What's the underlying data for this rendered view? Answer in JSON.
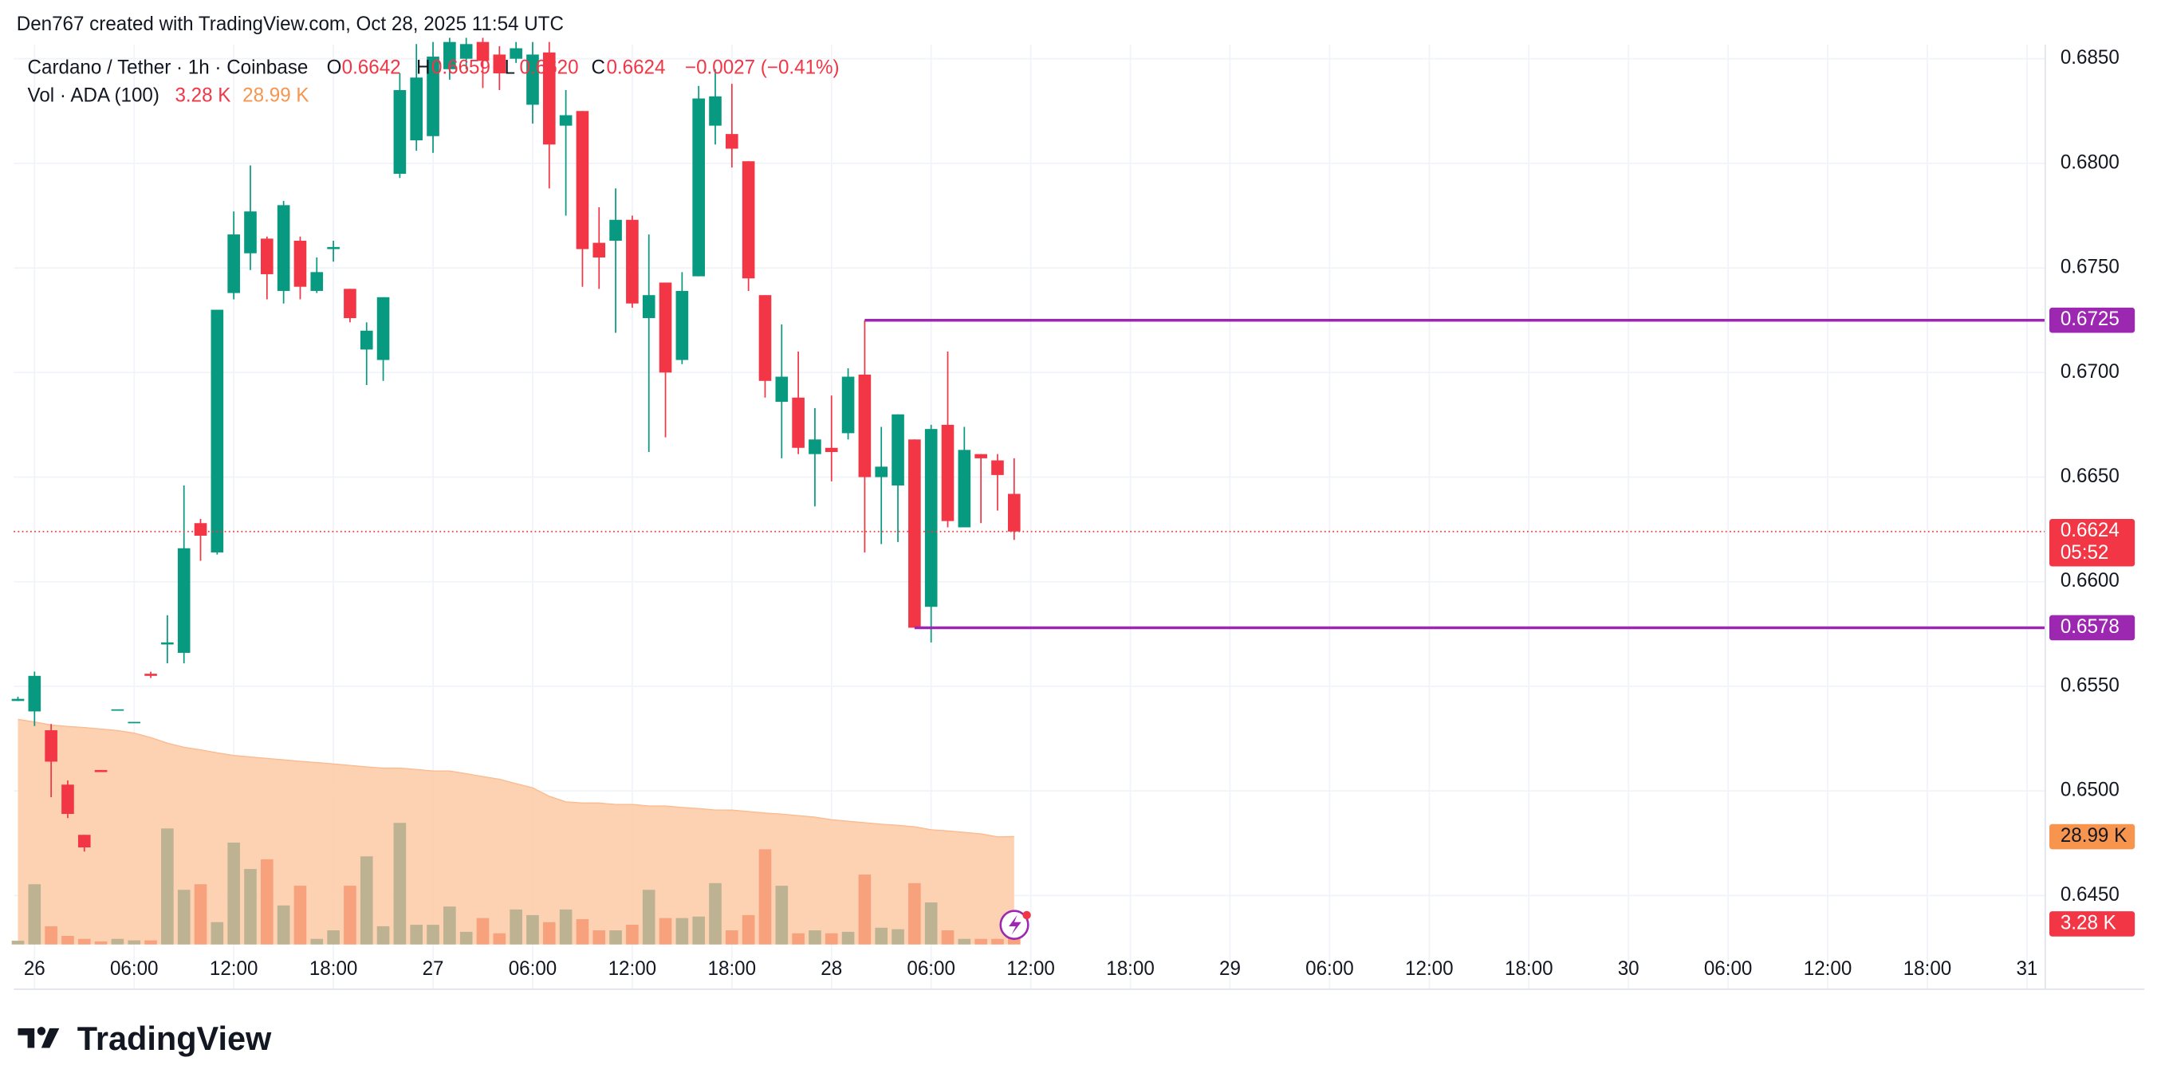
{
  "header": {
    "credit": "Den767 created with TradingView.com, Oct 28, 2025 11:54 UTC"
  },
  "footer": {
    "logo": "TradingView"
  },
  "chart_data": {
    "type": "candlestick",
    "legend": {
      "symbol": "Cardano / Tether · 1h · Coinbase",
      "o_key": "O",
      "o": "0.6642",
      "h_key": "H",
      "h": "0.6659",
      "l_key": "L",
      "l": "0.6620",
      "c_key": "C",
      "c": "0.6624",
      "change": "−0.0027 (−0.41%)",
      "vol_name": "Vol · ADA (100)",
      "vol_value": "3.28 K",
      "ma_value": "28.99 K"
    },
    "up_color": "#089981",
    "down_color": "#f23645",
    "vol_up_color": "#bdb292",
    "vol_down_color": "#f7a17d",
    "ma_color": "#fdcaa6",
    "level_color": "#9c27b0",
    "grid": true,
    "xlim": [
      -1.25,
      121.1
    ],
    "ylim": [
      0.64266,
      0.68567
    ],
    "vol_ylim": [
      0,
      242
    ],
    "xticks": [
      {
        "value": 0,
        "label": "26"
      },
      {
        "value": 6,
        "label": "06:00"
      },
      {
        "value": 12,
        "label": "12:00"
      },
      {
        "value": 18,
        "label": "18:00"
      },
      {
        "value": 24,
        "label": "27"
      },
      {
        "value": 30,
        "label": "06:00"
      },
      {
        "value": 36,
        "label": "12:00"
      },
      {
        "value": 42,
        "label": "18:00"
      },
      {
        "value": 48,
        "label": "28"
      },
      {
        "value": 54,
        "label": "06:00"
      },
      {
        "value": 60,
        "label": "12:00"
      },
      {
        "value": 66,
        "label": "18:00"
      },
      {
        "value": 72,
        "label": "29"
      },
      {
        "value": 78,
        "label": "06:00"
      },
      {
        "value": 84,
        "label": "12:00"
      },
      {
        "value": 90,
        "label": "18:00"
      },
      {
        "value": 96,
        "label": "30"
      },
      {
        "value": 102,
        "label": "06:00"
      },
      {
        "value": 108,
        "label": "12:00"
      },
      {
        "value": 114,
        "label": "18:00"
      },
      {
        "value": 120,
        "label": "31"
      }
    ],
    "yticks": [
      {
        "value": 0.645,
        "label": "0.6450"
      },
      {
        "value": 0.65,
        "label": "0.6500"
      },
      {
        "value": 0.655,
        "label": "0.6550"
      },
      {
        "value": 0.66,
        "label": "0.6600"
      },
      {
        "value": 0.665,
        "label": "0.6650"
      },
      {
        "value": 0.67,
        "label": "0.6700"
      },
      {
        "value": 0.675,
        "label": "0.6750"
      },
      {
        "value": 0.68,
        "label": "0.6800"
      },
      {
        "value": 0.685,
        "label": "0.6850"
      }
    ],
    "x": [
      -1,
      0,
      1,
      2,
      3,
      4,
      5,
      6,
      7,
      8,
      9,
      10,
      11,
      12,
      13,
      14,
      15,
      16,
      17,
      18,
      19,
      20,
      21,
      22,
      23,
      24,
      25,
      26,
      27,
      28,
      29,
      30,
      31,
      32,
      33,
      34,
      35,
      36,
      37,
      38,
      39,
      40,
      41,
      42,
      43,
      44,
      45,
      46,
      47,
      48,
      49,
      50,
      51,
      52,
      53,
      54,
      55,
      56,
      57,
      58,
      59
    ],
    "open": [
      0.6543,
      0.6538,
      0.6529,
      0.6503,
      0.6479,
      0.651,
      0.6539,
      0.6533,
      0.6556,
      0.657,
      0.6566,
      0.6628,
      0.6614,
      0.6738,
      0.6757,
      0.6764,
      0.6739,
      0.6763,
      0.6739,
      0.6759,
      0.674,
      0.6711,
      0.6706,
      0.6795,
      0.6811,
      0.6813,
      0.6845,
      0.685,
      0.6858,
      0.6852,
      0.685,
      0.6828,
      0.6853,
      0.6818,
      0.6825,
      0.6762,
      0.6763,
      0.6773,
      0.6726,
      0.6743,
      0.6706,
      0.6746,
      0.6818,
      0.6814,
      0.6801,
      0.6737,
      0.6686,
      0.6688,
      0.6661,
      0.6664,
      0.6671,
      0.6699,
      0.665,
      0.6646,
      0.6668,
      0.6588,
      0.6675,
      0.6626,
      0.6661,
      0.6658,
      0.6642
    ],
    "high": [
      0.6545,
      0.6557,
      0.6532,
      0.6505,
      0.6479,
      0.651,
      0.6539,
      0.6533,
      0.6557,
      0.6584,
      0.6646,
      0.663,
      0.673,
      0.6777,
      0.6799,
      0.6765,
      0.6782,
      0.6765,
      0.6755,
      0.6763,
      0.674,
      0.6724,
      0.6736,
      0.6843,
      0.6857,
      0.6858,
      0.686,
      0.686,
      0.686,
      0.6856,
      0.6858,
      0.6858,
      0.6858,
      0.6835,
      0.6825,
      0.6779,
      0.6788,
      0.6775,
      0.6766,
      0.6743,
      0.6748,
      0.6837,
      0.6845,
      0.6838,
      0.6801,
      0.6737,
      0.6723,
      0.671,
      0.6683,
      0.6689,
      0.6702,
      0.6725,
      0.6674,
      0.668,
      0.6668,
      0.6675,
      0.671,
      0.6674,
      0.6661,
      0.6661,
      0.6659
    ],
    "low": [
      0.6543,
      0.6531,
      0.6497,
      0.6487,
      0.6471,
      0.6509,
      0.6539,
      0.6533,
      0.6554,
      0.6561,
      0.6561,
      0.661,
      0.6613,
      0.6735,
      0.6749,
      0.6735,
      0.6733,
      0.6735,
      0.6738,
      0.6753,
      0.6724,
      0.6694,
      0.6696,
      0.6793,
      0.6806,
      0.6805,
      0.684,
      0.6845,
      0.6836,
      0.6835,
      0.6848,
      0.6819,
      0.6788,
      0.6775,
      0.6741,
      0.674,
      0.6719,
      0.6731,
      0.6662,
      0.6669,
      0.6704,
      0.6746,
      0.6809,
      0.6798,
      0.6739,
      0.6688,
      0.6659,
      0.6661,
      0.6636,
      0.6648,
      0.6668,
      0.6614,
      0.6618,
      0.6619,
      0.6578,
      0.6571,
      0.6626,
      0.6626,
      0.6628,
      0.6634,
      0.662
    ],
    "close": [
      0.6544,
      0.6555,
      0.6514,
      0.6489,
      0.6473,
      0.6509,
      0.6539,
      0.6533,
      0.6555,
      0.6571,
      0.6616,
      0.6622,
      0.673,
      0.6766,
      0.6777,
      0.6747,
      0.678,
      0.6741,
      0.6748,
      0.676,
      0.6726,
      0.672,
      0.6736,
      0.6835,
      0.6841,
      0.6851,
      0.6858,
      0.6857,
      0.6849,
      0.6843,
      0.6855,
      0.6852,
      0.6809,
      0.6823,
      0.6759,
      0.6755,
      0.6773,
      0.6733,
      0.6737,
      0.67,
      0.6739,
      0.6831,
      0.6832,
      0.6807,
      0.6745,
      0.6696,
      0.6698,
      0.6664,
      0.6668,
      0.6662,
      0.6698,
      0.665,
      0.6655,
      0.668,
      0.6578,
      0.6673,
      0.6629,
      0.6663,
      0.6659,
      0.6651,
      0.6624
    ],
    "volume": [
      1,
      16.2,
      4.9,
      2.3,
      1.5,
      0.8,
      1.5,
      1.1,
      1.1,
      31.2,
      14.7,
      16.2,
      6,
      27.4,
      20.3,
      22.9,
      10.5,
      15.8,
      1.5,
      3.8,
      15.8,
      23.7,
      4.9,
      32.7,
      5.3,
      5.3,
      10.2,
      3.4,
      7.1,
      3,
      9.4,
      7.9,
      6,
      9.4,
      6.8,
      3.8,
      3.8,
      5.3,
      14.7,
      7.1,
      7.1,
      7.5,
      16.5,
      3.8,
      7.9,
      25.6,
      15.8,
      3,
      3.8,
      3,
      3.4,
      18.8,
      4.5,
      4.1,
      16.5,
      11.3,
      3.8,
      1.5,
      1.5,
      1.5,
      3.28
    ],
    "volume_ma": [
      60.5,
      59.8,
      59.0,
      58.6,
      58.3,
      57.9,
      57.5,
      56.8,
      55.6,
      54.1,
      53.0,
      52.3,
      51.5,
      50.8,
      50.4,
      50.0,
      49.6,
      49.2,
      48.9,
      48.5,
      48.1,
      47.7,
      47.4,
      47.4,
      47.0,
      46.6,
      46.6,
      45.9,
      45.1,
      44.4,
      43.2,
      42.1,
      39.8,
      38.3,
      38.0,
      38.0,
      37.6,
      37.6,
      37.2,
      37.2,
      36.8,
      36.5,
      36.1,
      36.1,
      35.7,
      35.3,
      35.0,
      34.6,
      34.2,
      33.5,
      33.1,
      32.7,
      32.3,
      32.0,
      31.6,
      30.8,
      30.5,
      30.1,
      29.7,
      28.9,
      28.99
    ],
    "last_price": {
      "value": 0.6624,
      "label": "0.6624",
      "countdown": "05:52"
    },
    "levels": [
      {
        "value": 0.6725,
        "label": "0.6725",
        "from": 50
      },
      {
        "value": 0.6578,
        "label": "0.6578",
        "from": 53
      }
    ]
  }
}
